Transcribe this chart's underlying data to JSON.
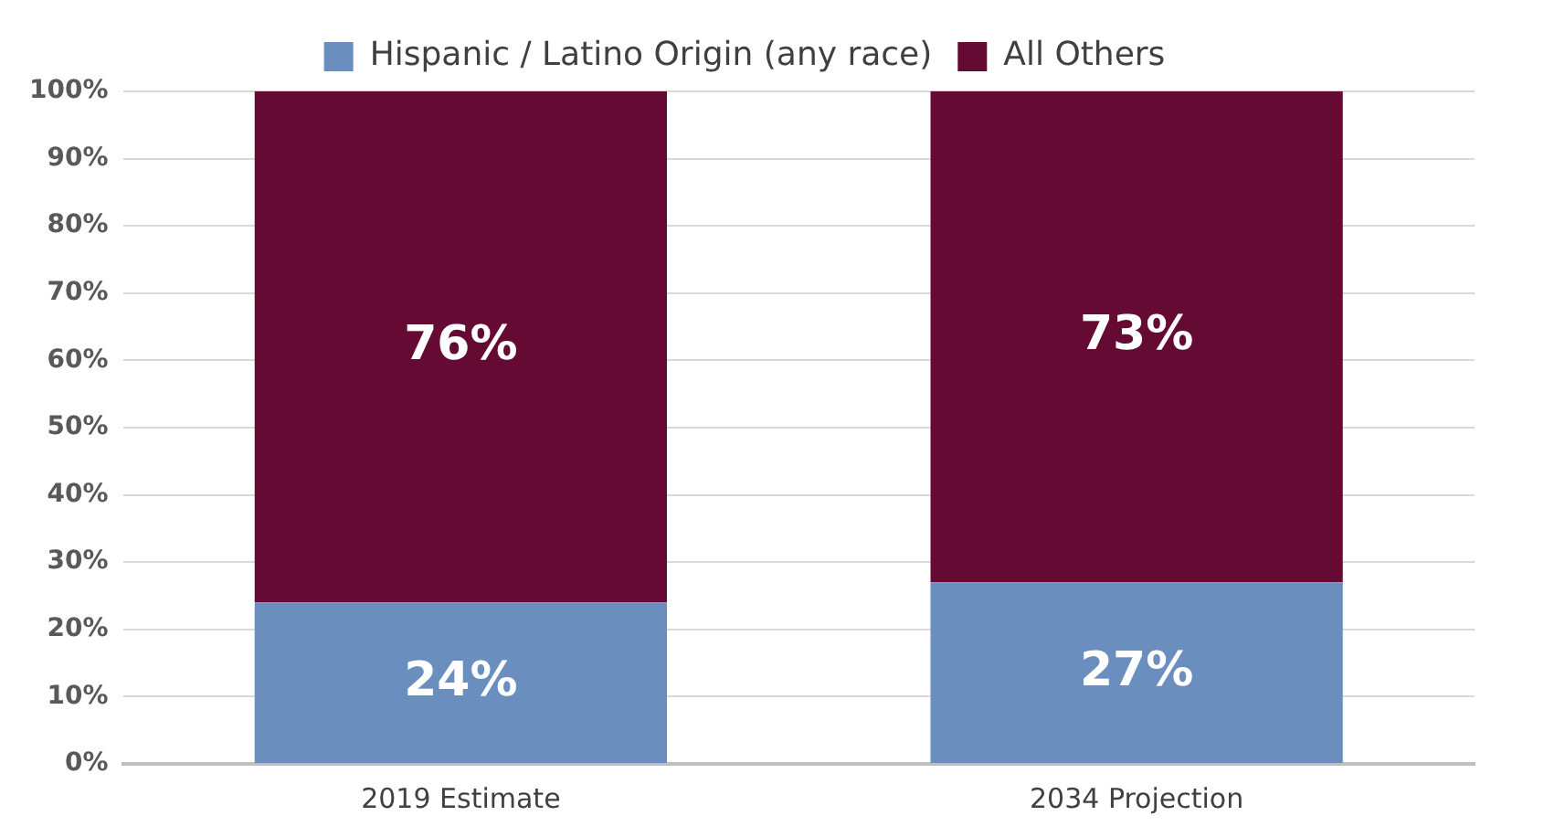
{
  "chart_data": {
    "type": "bar",
    "stacked": true,
    "categories": [
      "2019 Estimate",
      "2034 Projection"
    ],
    "series": [
      {
        "name": "Hispanic / Latino Origin (any race)",
        "color": "#6a8fbf",
        "values": [
          24,
          27
        ]
      },
      {
        "name": "All Others",
        "color": "#650a32",
        "values": [
          76,
          73
        ]
      }
    ],
    "ylim": [
      0,
      100
    ],
    "yticks": [
      {
        "value": 0,
        "label": "0%"
      },
      {
        "value": 10,
        "label": "10%"
      },
      {
        "value": 20,
        "label": "20%"
      },
      {
        "value": 30,
        "label": "30%"
      },
      {
        "value": 40,
        "label": "40%"
      },
      {
        "value": 50,
        "label": "50%"
      },
      {
        "value": 60,
        "label": "60%"
      },
      {
        "value": 70,
        "label": "70%"
      },
      {
        "value": 80,
        "label": "80%"
      },
      {
        "value": 90,
        "label": "90%"
      },
      {
        "value": 100,
        "label": "100%"
      }
    ],
    "grid": "y",
    "legend": "top",
    "value_labels": [
      [
        "24%",
        "27%"
      ],
      [
        "76%",
        "73%"
      ]
    ]
  }
}
